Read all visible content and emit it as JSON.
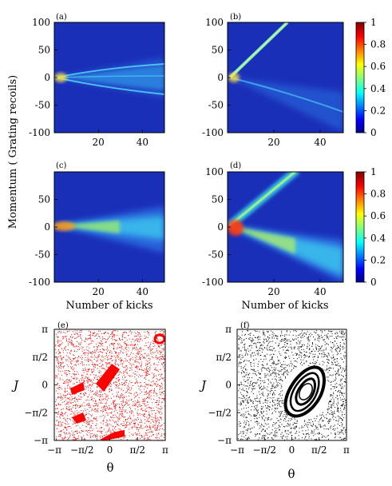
{
  "chart_data": [
    {
      "type": "heatmap",
      "panel_label": "(a)",
      "xlabel": "",
      "xlim": [
        0,
        50
      ],
      "ylim": [
        -100,
        100
      ],
      "xticks": [
        20,
        40
      ],
      "yticks": [
        100,
        50,
        0,
        -50,
        -100
      ],
      "description_shape": "single cone spreading symmetrically from origin"
    },
    {
      "type": "heatmap",
      "panel_label": "(b)",
      "xlabel": "",
      "xlim": [
        0,
        50
      ],
      "ylim": [
        -100,
        100
      ],
      "xticks": [
        20,
        40
      ],
      "yticks": [
        100,
        50,
        0,
        -50,
        -100
      ],
      "description_shape": "narrow accelerating beam up plus downward cone"
    },
    {
      "type": "heatmap",
      "panel_label": "(c)",
      "xlabel": "Number of kicks",
      "xlim": [
        0,
        50
      ],
      "ylim": [
        -100,
        100
      ],
      "xticks": [
        20,
        40
      ],
      "yticks": [
        50,
        0,
        -50,
        -100
      ]
    },
    {
      "type": "heatmap",
      "panel_label": "(d)",
      "xlabel": "Number of kicks",
      "xlim": [
        0,
        50
      ],
      "ylim": [
        -100,
        100
      ],
      "xticks": [
        20,
        40
      ],
      "yticks": [
        100,
        50,
        0,
        -50,
        -100
      ]
    },
    {
      "type": "scatter",
      "panel_label": "(e)",
      "xlabel": "θ",
      "ylabel": "J",
      "xticks": [
        "−π",
        "−π/2",
        "0",
        "π/2",
        "π"
      ],
      "yticks": [
        "π",
        "π/2",
        "0",
        "−π/2",
        "−π"
      ],
      "color": "#ff0000"
    },
    {
      "type": "scatter",
      "panel_label": "(f)",
      "xlabel": "θ",
      "ylabel": "J",
      "xticks": [
        "−π",
        "−π/2",
        "0",
        "π/2",
        "π"
      ],
      "yticks": [
        "π",
        "π/2",
        "0",
        "−π/2",
        "−π"
      ],
      "color": "#000000"
    }
  ],
  "shared": {
    "ylabel": "Momentum ( Grating recoils)",
    "colorbar_ticks": [
      "1",
      "0.8",
      "0.6",
      "0.4",
      "0.2",
      "0"
    ],
    "colorbar_range": [
      0,
      1
    ]
  }
}
